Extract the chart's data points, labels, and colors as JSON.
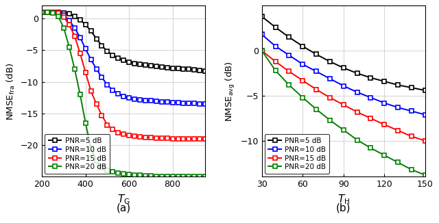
{
  "subplot_a": {
    "x": [
      200,
      225,
      250,
      275,
      300,
      325,
      350,
      375,
      400,
      425,
      450,
      475,
      500,
      525,
      550,
      575,
      600,
      625,
      650,
      675,
      700,
      725,
      750,
      775,
      800,
      825,
      850,
      875,
      900,
      925,
      950
    ],
    "black": [
      1.0,
      1.0,
      1.0,
      1.0,
      0.9,
      0.7,
      0.3,
      -0.2,
      -1.0,
      -2.0,
      -3.2,
      -4.3,
      -5.2,
      -5.8,
      -6.3,
      -6.6,
      -6.9,
      -7.1,
      -7.3,
      -7.4,
      -7.5,
      -7.6,
      -7.7,
      -7.8,
      -7.85,
      -7.9,
      -7.95,
      -8.0,
      -8.1,
      -8.2,
      -8.3
    ],
    "blue": [
      1.0,
      1.0,
      1.0,
      0.9,
      0.5,
      -0.3,
      -1.5,
      -3.0,
      -4.8,
      -6.5,
      -8.0,
      -9.3,
      -10.5,
      -11.3,
      -11.9,
      -12.3,
      -12.5,
      -12.7,
      -12.85,
      -12.95,
      -13.0,
      -13.1,
      -13.15,
      -13.2,
      -13.25,
      -13.3,
      -13.35,
      -13.4,
      -13.45,
      -13.5,
      -13.55
    ],
    "red": [
      1.0,
      1.0,
      1.0,
      0.8,
      0.2,
      -1.0,
      -2.8,
      -5.5,
      -8.5,
      -11.5,
      -13.5,
      -15.3,
      -16.8,
      -17.5,
      -18.0,
      -18.3,
      -18.5,
      -18.6,
      -18.7,
      -18.75,
      -18.8,
      -18.85,
      -18.9,
      -18.95,
      -19.0,
      -19.0,
      -19.0,
      -19.0,
      -19.0,
      -19.0,
      -19.0
    ],
    "green": [
      1.0,
      1.0,
      0.9,
      0.3,
      -1.5,
      -4.5,
      -8.0,
      -12.0,
      -16.5,
      -20.5,
      -22.5,
      -23.5,
      -24.0,
      -24.2,
      -24.4,
      -24.5,
      -24.6,
      -24.7,
      -24.75,
      -24.8,
      -24.85,
      -24.9,
      -24.95,
      -25.0,
      -25.0,
      -25.0,
      -25.0,
      -25.0,
      -25.0,
      -25.0,
      -25.0
    ],
    "xlabel": "$T_\\mathrm{G}$",
    "ylabel": "NMSE$_\\mathrm{fra}$ (dB)",
    "xlim": [
      200,
      950
    ],
    "ylim": [
      -25,
      2
    ],
    "xticks": [
      200,
      400,
      600,
      800
    ],
    "yticks": [
      0,
      -5,
      -10,
      -15,
      -20
    ],
    "label": "(a)"
  },
  "subplot_b": {
    "x": [
      30,
      40,
      50,
      60,
      70,
      80,
      90,
      100,
      110,
      120,
      130,
      140,
      150
    ],
    "black": [
      3.8,
      2.6,
      1.5,
      0.5,
      -0.4,
      -1.2,
      -1.9,
      -2.5,
      -3.0,
      -3.4,
      -3.8,
      -4.1,
      -4.4
    ],
    "blue": [
      1.8,
      0.5,
      -0.5,
      -1.5,
      -2.3,
      -3.1,
      -3.9,
      -4.6,
      -5.2,
      -5.8,
      -6.3,
      -6.7,
      -7.1
    ],
    "red": [
      0.0,
      -1.2,
      -2.3,
      -3.3,
      -4.3,
      -5.2,
      -6.0,
      -6.8,
      -7.5,
      -8.2,
      -8.85,
      -9.5,
      -10.0
    ],
    "green": [
      0.0,
      -2.2,
      -3.8,
      -5.2,
      -6.5,
      -7.7,
      -8.8,
      -9.9,
      -10.8,
      -11.6,
      -12.4,
      -13.2,
      -13.8
    ],
    "xlabel": "$T_\\mathrm{H}$",
    "ylabel": "NMSE$_\\mathrm{avg}$ (dB)",
    "xlim": [
      30,
      150
    ],
    "ylim": [
      -14,
      5
    ],
    "xticks": [
      30,
      60,
      90,
      120,
      150
    ],
    "yticks": [
      0,
      -5,
      -10
    ],
    "label": "(b)"
  },
  "legend_labels": [
    "PNR=5 dB",
    "PNR=10 dB",
    "PNR=15 dB",
    "PNR=20 dB"
  ],
  "colors": [
    "black",
    "blue",
    "red",
    "green"
  ],
  "marker": "s",
  "markersize": 4.5,
  "linewidth": 1.4
}
